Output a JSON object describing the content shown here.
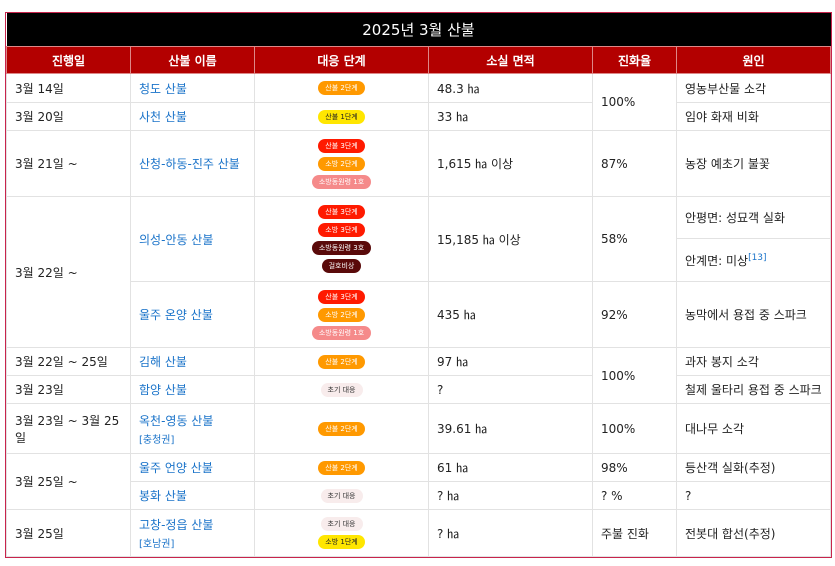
{
  "title": "2025년 3월 산불",
  "headers": [
    "진행일",
    "산불 이름",
    "대응 단계",
    "소실 면적",
    "진화율",
    "원인"
  ],
  "badge_colors": {
    "orange": "#ff9900",
    "yellow": "#ffe600",
    "red": "#ff1a00",
    "pink": "#f58a8a",
    "darkred": "#5a0a0a",
    "light": "#f8ecec"
  },
  "rows": [
    {
      "date": "3월 14일",
      "name": "청도 산불",
      "badges": [
        {
          "text": "산불 2단계",
          "color": "orange"
        }
      ],
      "area": "48.3 ㏊",
      "rate": "100%",
      "rate_span": 2,
      "cause": [
        "영농부산물 소각"
      ],
      "h": 29
    },
    {
      "date": "3월 20일",
      "name": "사천 산불",
      "badges": [
        {
          "text": "산불 1단계",
          "color": "yellow"
        }
      ],
      "area": "33 ㏊",
      "cause": [
        "임야 화재 비화"
      ],
      "h": 28
    },
    {
      "date": "3월 21일 ~",
      "name": "산청-하동-진주 산불",
      "badges": [
        {
          "text": "산불 3단계",
          "color": "red"
        },
        {
          "text": "소방 2단계",
          "color": "orange"
        },
        {
          "text": "소방동원령 1호",
          "color": "pink"
        }
      ],
      "area": "1,615 ㏊ 이상",
      "rate": "87%",
      "cause": [
        "농장 예초기 불꽃"
      ],
      "h": 66
    },
    {
      "date": "3월 22일 ~",
      "date_span": 3,
      "name": "의성-안동 산불",
      "badges": [
        {
          "text": "산불 3단계",
          "color": "red"
        },
        {
          "text": "소방 3단계",
          "color": "red"
        },
        {
          "text": "소방동원령 3호",
          "color": "darkred"
        },
        {
          "text": "걸호비상",
          "color": "darkred"
        }
      ],
      "area": "15,185 ㏊ 이상",
      "rate": "58%",
      "span2": true,
      "cause": [
        "안평면: 성묘객 실화"
      ],
      "h": 42
    },
    {
      "cont": true,
      "cause": [
        "안계면: 미상"
      ],
      "ref": "[13]",
      "h": 43
    },
    {
      "cont3": true,
      "name": "울주 온양 산불",
      "badges": [
        {
          "text": "산불 3단계",
          "color": "red"
        },
        {
          "text": "소방 2단계",
          "color": "orange"
        },
        {
          "text": "소방동원령 1호",
          "color": "pink"
        }
      ],
      "area": "435 ㏊",
      "rate": "92%",
      "cause": [
        "농막에서 용접 중 스파크"
      ],
      "h": 66
    },
    {
      "date": "3월 22일 ~ 25일",
      "name": "김해 산불",
      "badges": [
        {
          "text": "산불 2단계",
          "color": "orange"
        }
      ],
      "area": "97 ㏊",
      "rate": "100%",
      "rate_span": 2,
      "cause": [
        "과자 봉지 소각"
      ],
      "h": 28
    },
    {
      "date": "3월 23일",
      "name": "함양 산불",
      "badges": [
        {
          "text": "초기 대응",
          "color": "light"
        }
      ],
      "area": "?",
      "cause": [
        "철제 울타리 용접 중 스파크"
      ],
      "h": 28
    },
    {
      "date": "3월 23일 ~ 3월 25일",
      "name": "옥천-영동 산불",
      "region": "[충청권]",
      "badges": [
        {
          "text": "산불 2단계",
          "color": "orange"
        }
      ],
      "area": "39.61 ㏊",
      "rate": "100%",
      "cause": [
        "대나무 소각"
      ],
      "h": 50
    },
    {
      "date": "3월 25일 ~",
      "date_span": 2,
      "name": "울주 언양 산불",
      "badges": [
        {
          "text": "산불 2단계",
          "color": "orange"
        }
      ],
      "area": "61 ㏊",
      "rate": "98%",
      "cause": [
        "등산객 실화(추정)"
      ],
      "h": 28
    },
    {
      "cont": false,
      "nodate": true,
      "name": "봉화 산불",
      "badges": [
        {
          "text": "초기 대응",
          "color": "light"
        }
      ],
      "area": "? ㏊",
      "rate": "? %",
      "cause": [
        "?"
      ],
      "h": 28
    },
    {
      "date": "3월 25일",
      "name": "고창-정읍 산불",
      "region": "[호남권]",
      "badges": [
        {
          "text": "초기 대응",
          "color": "light"
        },
        {
          "text": "소방 1단계",
          "color": "yellow"
        }
      ],
      "area": "? ㏊",
      "rate": "주불 진화",
      "cause": [
        "전봇대 합선(추정)"
      ],
      "h": 47
    }
  ]
}
